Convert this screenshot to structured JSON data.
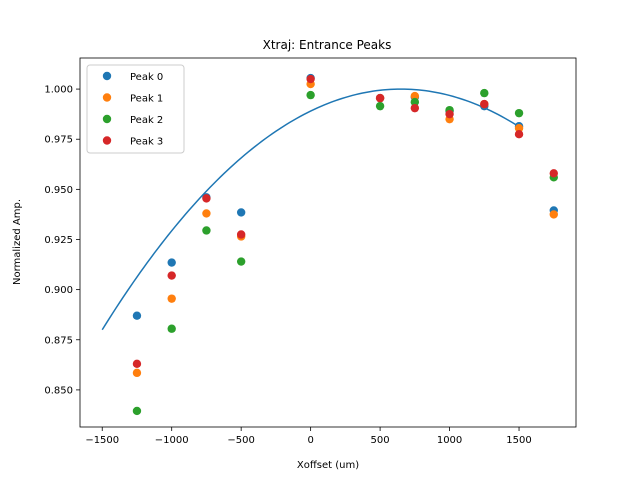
{
  "chart_data": {
    "type": "scatter",
    "title": "Xtraj: Entrance Peaks",
    "xlabel": "Xoffset (um)",
    "ylabel": "Normalized Amp.",
    "xlim": [
      -1660,
      1910
    ],
    "ylim": [
      0.8315,
      1.0155
    ],
    "xticks": [
      -1500,
      -1000,
      -500,
      0,
      500,
      1000,
      1500
    ],
    "xtick_labels": [
      "−1500",
      "−1000",
      "−500",
      "0",
      "500",
      "1000",
      "1500"
    ],
    "yticks": [
      0.85,
      0.875,
      0.9,
      0.925,
      0.95,
      0.975,
      1.0
    ],
    "ytick_labels": [
      "0.850",
      "0.875",
      "0.900",
      "0.925",
      "0.950",
      "0.975",
      "1.000"
    ],
    "grid": false,
    "legend_position": "upper-left",
    "x": [
      -1250,
      -1000,
      -750,
      -500,
      0,
      500,
      750,
      1000,
      1250,
      1500,
      1750
    ],
    "series": [
      {
        "name": "Peak 0",
        "color": "#1f77b4",
        "values": [
          0.887,
          0.9135,
          0.946,
          0.9385,
          1.0055,
          0.9955,
          0.996,
          0.989,
          0.9915,
          0.9815,
          0.9395
        ]
      },
      {
        "name": "Peak 1",
        "color": "#ff7f0e",
        "values": [
          0.8585,
          0.8955,
          0.938,
          0.9265,
          1.0025,
          0.9955,
          0.9965,
          0.985,
          0.9925,
          0.9805,
          0.9375
        ]
      },
      {
        "name": "Peak 2",
        "color": "#2ca02c",
        "values": [
          0.8395,
          0.8805,
          0.9295,
          0.914,
          0.997,
          0.9915,
          0.9935,
          0.9895,
          0.998,
          0.988,
          0.956
        ]
      },
      {
        "name": "Peak 3",
        "color": "#d62728",
        "values": [
          0.863,
          0.907,
          0.9455,
          0.9275,
          1.005,
          0.9955,
          0.9905,
          0.9875,
          0.9925,
          0.9775,
          0.958
        ]
      }
    ],
    "fit_curve": {
      "color": "#1f77b4",
      "x_range": [
        -1500,
        1500
      ],
      "vertex_x": 650,
      "vertex_y": 1.0,
      "endpoint_y": 0.88
    }
  }
}
